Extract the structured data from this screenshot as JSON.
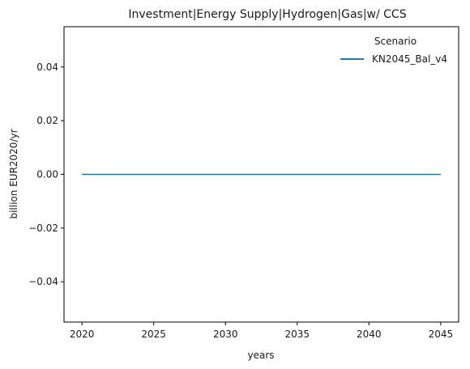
{
  "chart_data": {
    "type": "line",
    "title": "Investment|Energy Supply|Hydrogen|Gas|w/ CCS",
    "xlabel": "years",
    "ylabel": "billion EUR2020/yr",
    "xlim": [
      2018.75,
      2046.25
    ],
    "ylim": [
      -0.055,
      0.055
    ],
    "xticks": [
      2020,
      2025,
      2030,
      2035,
      2040,
      2045
    ],
    "xtick_labels": [
      "2020",
      "2025",
      "2030",
      "2035",
      "2040",
      "2045"
    ],
    "yticks": [
      -0.04,
      -0.02,
      0.0,
      0.02,
      0.04
    ],
    "ytick_labels": [
      "−0.04",
      "−0.02",
      "0.00",
      "0.02",
      "0.04"
    ],
    "grid": false,
    "legend": {
      "title": "Scenario",
      "placement": "top-right"
    },
    "series": [
      {
        "name": "KN2045_Bal_v4",
        "color": "#1f77b4",
        "x": [
          2020,
          2025,
          2030,
          2035,
          2040,
          2045
        ],
        "y": [
          0,
          0,
          0,
          0,
          0,
          0
        ]
      }
    ]
  }
}
